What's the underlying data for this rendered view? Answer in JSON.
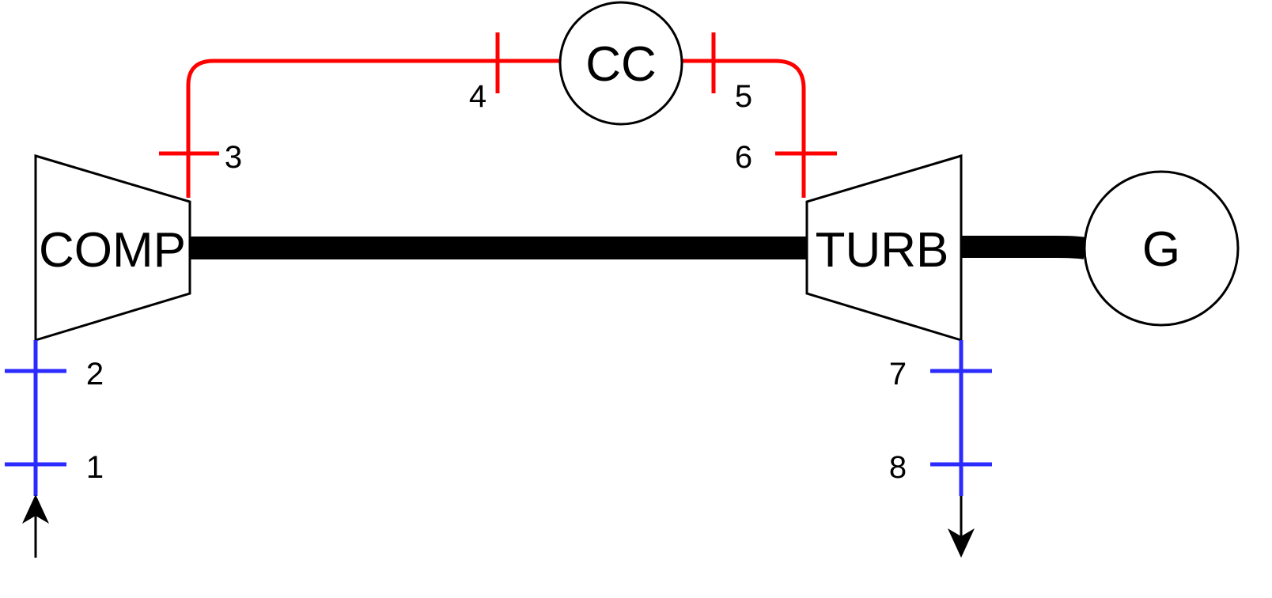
{
  "components": {
    "compressor": "COMP",
    "turbine": "TURB",
    "combustion_chamber": "CC",
    "generator": "G"
  },
  "points": {
    "p1": "1",
    "p2": "2",
    "p3": "3",
    "p4": "4",
    "p5": "5",
    "p6": "6",
    "p7": "7",
    "p8": "8"
  },
  "colors": {
    "hot_gas_line": "#ff0000",
    "cold_line": "#2b2bff",
    "shaft": "#000000",
    "outline": "#000000"
  }
}
